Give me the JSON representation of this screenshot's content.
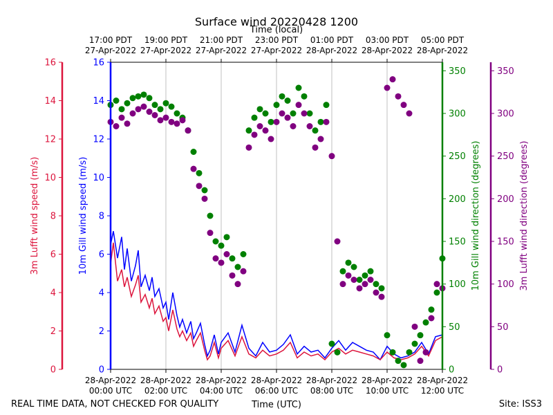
{
  "chart_data": {
    "type": "line",
    "title": "Surface wind 20220428 1200",
    "top_axis_label": "Time (local)",
    "xlabel": "Time (UTC)",
    "footer_left": "REAL TIME DATA, NOT CHECKED FOR QUALITY",
    "footer_right": "Site: ISS3",
    "x_range_hours": [
      0,
      12
    ],
    "bottom_ticks": [
      {
        "hour": 0,
        "line1": "28-Apr-2022",
        "line2": "00:00 UTC"
      },
      {
        "hour": 2,
        "line1": "28-Apr-2022",
        "line2": "02:00 UTC"
      },
      {
        "hour": 4,
        "line1": "28-Apr-2022",
        "line2": "04:00 UTC"
      },
      {
        "hour": 6,
        "line1": "28-Apr-2022",
        "line2": "06:00 UTC"
      },
      {
        "hour": 8,
        "line1": "28-Apr-2022",
        "line2": "08:00 UTC"
      },
      {
        "hour": 10,
        "line1": "28-Apr-2022",
        "line2": "10:00 UTC"
      },
      {
        "hour": 12,
        "line1": "28-Apr-2022",
        "line2": "12:00 UTC"
      }
    ],
    "top_ticks": [
      {
        "hour": 0,
        "line1": "17:00 PDT",
        "line2": "27-Apr-2022"
      },
      {
        "hour": 2,
        "line1": "19:00 PDT",
        "line2": "27-Apr-2022"
      },
      {
        "hour": 4,
        "line1": "21:00 PDT",
        "line2": "27-Apr-2022"
      },
      {
        "hour": 6,
        "line1": "23:00 PDT",
        "line2": "27-Apr-2022"
      },
      {
        "hour": 8,
        "line1": "01:00 PDT",
        "line2": "28-Apr-2022"
      },
      {
        "hour": 10,
        "line1": "03:00 PDT",
        "line2": "28-Apr-2022"
      },
      {
        "hour": 12,
        "line1": "05:00 PDT",
        "line2": "28-Apr-2022"
      }
    ],
    "axes": {
      "lufft_speed": {
        "label": "3m Lufft wind speed (m/s)",
        "color": "#dc143c",
        "ylim": [
          0,
          16
        ],
        "ticks": [
          0,
          2,
          4,
          6,
          8,
          10,
          12,
          14,
          16
        ]
      },
      "gill_speed": {
        "label": "10m Gill wind speed (m/s)",
        "color": "#0000ff",
        "ylim": [
          0,
          16
        ],
        "ticks": [
          0,
          2,
          4,
          6,
          8,
          10,
          12,
          14,
          16
        ]
      },
      "gill_dir": {
        "label": "10m Gill wind direction (degrees)",
        "color": "#008000",
        "ylim": [
          0,
          360
        ],
        "ticks": [
          0,
          50,
          100,
          150,
          200,
          250,
          300,
          350
        ]
      },
      "lufft_dir": {
        "label": "3m Lufft wind direction (degrees)",
        "color": "#800080",
        "ylim": [
          0,
          360
        ],
        "ticks": [
          0,
          50,
          100,
          150,
          200,
          250,
          300,
          350
        ]
      }
    },
    "series": [
      {
        "name": "10m Gill wind speed",
        "axis": "gill_speed",
        "style": "line",
        "color": "#0000ff",
        "x": [
          0,
          0.1,
          0.25,
          0.4,
          0.5,
          0.6,
          0.75,
          0.9,
          1.0,
          1.1,
          1.25,
          1.4,
          1.5,
          1.6,
          1.75,
          1.9,
          2.0,
          2.1,
          2.25,
          2.4,
          2.5,
          2.6,
          2.75,
          2.9,
          3.0,
          3.1,
          3.25,
          3.4,
          3.5,
          3.6,
          3.75,
          3.9,
          4.0,
          4.25,
          4.5,
          4.75,
          5.0,
          5.25,
          5.5,
          5.75,
          6.0,
          6.25,
          6.5,
          6.75,
          7.0,
          7.25,
          7.5,
          7.75,
          8.0,
          8.25,
          8.5,
          8.75,
          9.0,
          9.25,
          9.5,
          9.75,
          10.0,
          10.25,
          10.5,
          10.75,
          11.0,
          11.25,
          11.5,
          11.75,
          12.0
        ],
        "values": [
          6.5,
          7.2,
          5.8,
          6.9,
          5.2,
          6.3,
          4.6,
          5.4,
          6.2,
          4.3,
          4.9,
          4.1,
          4.8,
          3.8,
          4.2,
          3.2,
          3.5,
          2.6,
          4.0,
          2.8,
          2.2,
          2.6,
          1.9,
          2.5,
          1.6,
          1.9,
          2.4,
          1.3,
          0.7,
          1.0,
          1.8,
          0.8,
          1.4,
          1.9,
          0.9,
          2.3,
          1.1,
          0.7,
          1.4,
          0.9,
          1.0,
          1.3,
          1.8,
          0.8,
          1.2,
          0.9,
          1.0,
          0.6,
          1.1,
          1.5,
          1.0,
          1.4,
          1.2,
          1.0,
          0.9,
          0.5,
          1.2,
          0.8,
          0.6,
          0.7,
          0.9,
          1.4,
          0.8,
          1.7,
          1.8
        ]
      },
      {
        "name": "3m Lufft wind speed",
        "axis": "lufft_speed",
        "style": "line",
        "color": "#dc143c",
        "x": [
          0,
          0.1,
          0.25,
          0.4,
          0.5,
          0.6,
          0.75,
          0.9,
          1.0,
          1.1,
          1.25,
          1.4,
          1.5,
          1.6,
          1.75,
          1.9,
          2.0,
          2.1,
          2.25,
          2.4,
          2.5,
          2.6,
          2.75,
          2.9,
          3.0,
          3.1,
          3.25,
          3.4,
          3.5,
          3.6,
          3.75,
          3.9,
          4.0,
          4.25,
          4.5,
          4.75,
          5.0,
          5.25,
          5.5,
          5.75,
          6.0,
          6.25,
          6.5,
          6.75,
          7.0,
          7.25,
          7.5,
          7.75,
          8.0,
          8.25,
          8.5,
          8.75,
          9.0,
          9.25,
          9.5,
          9.75,
          10.0,
          10.25,
          10.5,
          10.75,
          11.0,
          11.25,
          11.5,
          11.75,
          12.0
        ],
        "values": [
          5.5,
          6.6,
          4.6,
          5.2,
          4.3,
          4.8,
          3.8,
          4.4,
          4.9,
          3.5,
          3.9,
          3.2,
          3.7,
          2.9,
          3.3,
          2.5,
          2.7,
          2.0,
          3.1,
          2.1,
          1.7,
          2.0,
          1.5,
          1.9,
          1.2,
          1.5,
          1.9,
          1.0,
          0.5,
          0.7,
          1.4,
          0.6,
          1.1,
          1.5,
          0.7,
          1.7,
          0.8,
          0.6,
          1.0,
          0.7,
          0.8,
          1.0,
          1.4,
          0.6,
          0.9,
          0.7,
          0.8,
          0.5,
          0.9,
          1.1,
          0.8,
          1.0,
          0.9,
          0.8,
          0.7,
          0.5,
          0.9,
          0.6,
          0.5,
          0.6,
          0.8,
          1.2,
          0.7,
          1.5,
          1.7
        ]
      },
      {
        "name": "10m Gill wind direction",
        "axis": "gill_dir",
        "style": "scatter",
        "color": "#008000",
        "x": [
          0,
          0.2,
          0.4,
          0.6,
          0.8,
          1.0,
          1.2,
          1.4,
          1.6,
          1.8,
          2.0,
          2.2,
          2.4,
          2.6,
          2.8,
          3.0,
          3.2,
          3.4,
          3.6,
          3.8,
          4.0,
          4.2,
          4.4,
          4.6,
          4.8,
          5.0,
          5.2,
          5.4,
          5.6,
          5.8,
          6.0,
          6.2,
          6.4,
          6.6,
          6.8,
          7.0,
          7.2,
          7.4,
          7.6,
          7.8,
          8.0,
          8.2,
          8.4,
          8.6,
          8.8,
          9.0,
          9.2,
          9.4,
          9.6,
          9.8,
          10.0,
          10.2,
          10.4,
          10.6,
          10.8,
          11.0,
          11.2,
          11.4,
          11.6,
          11.8,
          12.0
        ],
        "values": [
          310,
          315,
          305,
          312,
          318,
          320,
          322,
          318,
          310,
          305,
          312,
          308,
          300,
          295,
          280,
          255,
          230,
          210,
          180,
          150,
          145,
          155,
          130,
          120,
          135,
          280,
          295,
          305,
          300,
          290,
          310,
          320,
          315,
          300,
          330,
          320,
          300,
          280,
          290,
          310,
          30,
          20,
          115,
          125,
          120,
          105,
          110,
          115,
          100,
          95,
          40,
          20,
          10,
          5,
          20,
          30,
          40,
          55,
          70,
          90,
          130
        ]
      },
      {
        "name": "3m Lufft wind direction",
        "axis": "lufft_dir",
        "style": "scatter",
        "color": "#800080",
        "x": [
          0,
          0.2,
          0.4,
          0.6,
          0.8,
          1.0,
          1.2,
          1.4,
          1.6,
          1.8,
          2.0,
          2.2,
          2.4,
          2.6,
          2.8,
          3.0,
          3.2,
          3.4,
          3.6,
          3.8,
          4.0,
          4.2,
          4.4,
          4.6,
          4.8,
          5.0,
          5.2,
          5.4,
          5.6,
          5.8,
          6.0,
          6.2,
          6.4,
          6.6,
          6.8,
          7.0,
          7.2,
          7.4,
          7.6,
          7.8,
          8.0,
          8.2,
          8.4,
          8.6,
          8.8,
          9.0,
          9.2,
          9.4,
          9.6,
          9.8,
          10.0,
          10.2,
          10.4,
          10.6,
          10.8,
          11.0,
          11.2,
          11.4,
          11.6,
          11.8,
          12.0
        ],
        "values": [
          290,
          285,
          295,
          288,
          300,
          305,
          308,
          302,
          298,
          292,
          295,
          290,
          288,
          292,
          280,
          235,
          215,
          200,
          160,
          130,
          125,
          135,
          110,
          100,
          115,
          260,
          275,
          285,
          280,
          270,
          290,
          300,
          295,
          285,
          310,
          300,
          285,
          260,
          270,
          290,
          250,
          150,
          100,
          110,
          105,
          95,
          100,
          105,
          90,
          85,
          330,
          340,
          320,
          310,
          300,
          50,
          10,
          20,
          60,
          100,
          95
        ]
      }
    ]
  }
}
